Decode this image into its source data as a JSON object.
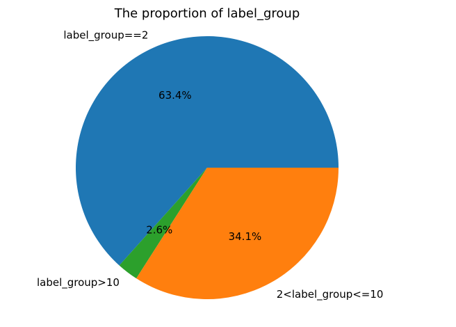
{
  "chart_data": {
    "type": "pie",
    "title": "The proportion of label_group",
    "slices": [
      {
        "label": "label_group==2",
        "value": 63.4,
        "pct_label": "63.4%",
        "color": "#1f77b4"
      },
      {
        "label": "label_group>10",
        "value": 2.6,
        "pct_label": "2.6%",
        "color": "#2ca02c"
      },
      {
        "label": "2<label_group<=10",
        "value": 34.1,
        "pct_label": "34.1%",
        "color": "#ff7f0e"
      }
    ],
    "start_angle_deg": 0,
    "direction": "counterclockwise"
  }
}
